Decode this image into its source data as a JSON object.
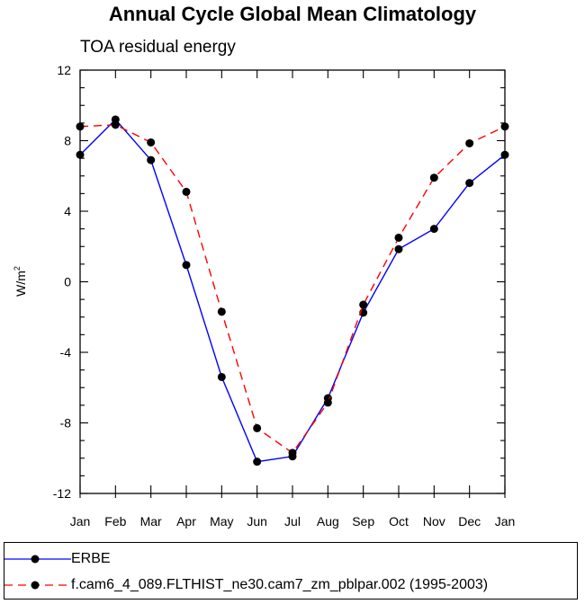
{
  "chart_data": {
    "type": "line",
    "title": "Annual Cycle Global Mean Climatology",
    "subtitle": "TOA residual energy",
    "xlabel": "",
    "ylabel": "W/m",
    "ylabel_superscript": "2",
    "categories": [
      "Jan",
      "Feb",
      "Mar",
      "Apr",
      "May",
      "Jun",
      "Jul",
      "Aug",
      "Sep",
      "Oct",
      "Nov",
      "Dec",
      "Jan"
    ],
    "ylim": [
      -12,
      12
    ],
    "yticks": [
      -12,
      -8,
      -4,
      0,
      4,
      8,
      12
    ],
    "ytick_labels": [
      "-12",
      "-8",
      "-4",
      "0",
      "4",
      "8",
      "12"
    ],
    "grid": false,
    "legend_position": "bottom",
    "series": [
      {
        "name": "ERBE",
        "color": "#0000ff",
        "dash": "solid",
        "values": [
          7.2,
          9.2,
          6.9,
          0.95,
          -5.4,
          -10.2,
          -9.9,
          -6.6,
          -1.75,
          1.85,
          3.0,
          5.6,
          7.2
        ]
      },
      {
        "name": "f.cam6_4_089.FLTHIST_ne30.cam7_zm_pblpar.002 (1995-2003)",
        "color": "#ff0000",
        "dash": "dashed",
        "values": [
          8.8,
          8.9,
          7.9,
          5.1,
          -1.7,
          -8.3,
          -9.7,
          -6.85,
          -1.3,
          2.5,
          5.9,
          7.85,
          8.8
        ]
      }
    ]
  }
}
